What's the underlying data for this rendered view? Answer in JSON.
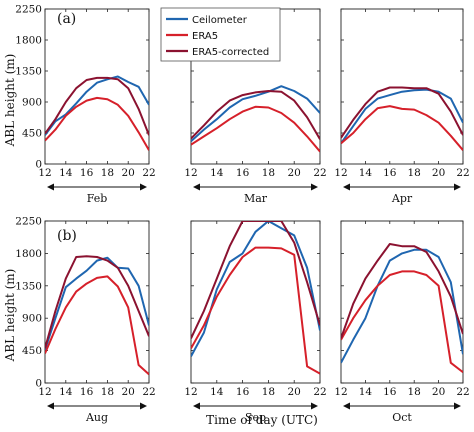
{
  "chart_data": {
    "type": "line",
    "xlabel": "Time of day (UTC)",
    "ylabel": "ABL height (m)",
    "xlim": [
      12,
      22
    ],
    "ylim": [
      0,
      2250
    ],
    "x_ticks": [
      12,
      14,
      16,
      18,
      20,
      22
    ],
    "y_ticks": [
      0,
      450,
      900,
      1350,
      1800,
      2250
    ],
    "grid": false,
    "legend": {
      "location": "top, first row centre",
      "entries": [
        {
          "name": "Ceilometer",
          "color": "#1f66b0"
        },
        {
          "name": "ERA5",
          "color": "#d6202a"
        },
        {
          "name": "ERA5-corrected",
          "color": "#8b1230"
        }
      ]
    },
    "rows": [
      {
        "label": "(a)",
        "panels": [
          {
            "month": "Feb",
            "series": [
              {
                "name": "Ceilometer",
                "x": [
                  12,
                  13,
                  14,
                  15,
                  16,
                  17,
                  18,
                  19,
                  20,
                  21,
                  22
                ],
                "y": [
                  420,
                  620,
                  720,
                  880,
                  1050,
                  1180,
                  1230,
                  1270,
                  1190,
                  1120,
                  860
                ]
              },
              {
                "name": "ERA5",
                "x": [
                  12,
                  13,
                  14,
                  15,
                  16,
                  17,
                  18,
                  19,
                  20,
                  21,
                  22
                ],
                "y": [
                  340,
                  500,
                  700,
                  830,
                  920,
                  960,
                  940,
                  860,
                  700,
                  460,
                  200
                ]
              },
              {
                "name": "ERA5-corrected",
                "x": [
                  12,
                  13,
                  14,
                  15,
                  16,
                  17,
                  18,
                  19,
                  20,
                  21,
                  22
                ],
                "y": [
                  440,
                  650,
                  900,
                  1100,
                  1220,
                  1250,
                  1250,
                  1230,
                  1100,
                  800,
                  420
                ]
              }
            ]
          },
          {
            "month": "Mar",
            "series": [
              {
                "name": "Ceilometer",
                "x": [
                  12,
                  13,
                  14,
                  15,
                  16,
                  17,
                  18,
                  19,
                  20,
                  21,
                  22
                ],
                "y": [
                  330,
                  500,
                  650,
                  820,
                  940,
                  990,
                  1050,
                  1130,
                  1060,
                  950,
                  740
                ]
              },
              {
                "name": "ERA5",
                "x": [
                  12,
                  13,
                  14,
                  15,
                  16,
                  17,
                  18,
                  19,
                  20,
                  21,
                  22
                ],
                "y": [
                  280,
                  400,
                  520,
                  650,
                  760,
                  830,
                  820,
                  740,
                  600,
                  400,
                  180
                ]
              },
              {
                "name": "ERA5-corrected",
                "x": [
                  12,
                  13,
                  14,
                  15,
                  16,
                  17,
                  18,
                  19,
                  20,
                  21,
                  22
                ],
                "y": [
                  370,
                  560,
                  760,
                  920,
                  1000,
                  1040,
                  1060,
                  1050,
                  920,
                  680,
                  360
                ]
              }
            ]
          },
          {
            "month": "Apr",
            "series": [
              {
                "name": "Ceilometer",
                "x": [
                  12,
                  13,
                  14,
                  15,
                  16,
                  17,
                  18,
                  19,
                  20,
                  21,
                  22
                ],
                "y": [
                  300,
                  550,
                  800,
                  950,
                  1000,
                  1050,
                  1070,
                  1080,
                  1050,
                  950,
                  600
                ]
              },
              {
                "name": "ERA5",
                "x": [
                  12,
                  13,
                  14,
                  15,
                  16,
                  17,
                  18,
                  19,
                  20,
                  21,
                  22
                ],
                "y": [
                  300,
                  450,
                  650,
                  810,
                  840,
                  800,
                  790,
                  710,
                  600,
                  410,
                  200
                ]
              },
              {
                "name": "ERA5-corrected",
                "x": [
                  12,
                  13,
                  14,
                  15,
                  16,
                  17,
                  18,
                  19,
                  20,
                  21,
                  22
                ],
                "y": [
                  380,
                  640,
                  870,
                  1050,
                  1110,
                  1110,
                  1100,
                  1100,
                  1020,
                  760,
                  420
                ]
              }
            ]
          }
        ]
      },
      {
        "label": "(b)",
        "panels": [
          {
            "month": "Aug",
            "series": [
              {
                "name": "Ceilometer",
                "x": [
                  12,
                  13,
                  14,
                  15,
                  16,
                  17,
                  18,
                  19,
                  20,
                  21,
                  22
                ],
                "y": [
                  460,
                  900,
                  1330,
                  1450,
                  1560,
                  1700,
                  1740,
                  1600,
                  1590,
                  1350,
                  800
                ]
              },
              {
                "name": "ERA5",
                "x": [
                  12,
                  13,
                  14,
                  15,
                  16,
                  17,
                  18,
                  19,
                  20,
                  21,
                  22
                ],
                "y": [
                  410,
                  750,
                  1050,
                  1270,
                  1380,
                  1460,
                  1480,
                  1340,
                  1050,
                  250,
                  120
                ]
              },
              {
                "name": "ERA5-corrected",
                "x": [
                  12,
                  13,
                  14,
                  15,
                  16,
                  17,
                  18,
                  19,
                  20,
                  21,
                  22
                ],
                "y": [
                  480,
                  1000,
                  1450,
                  1750,
                  1760,
                  1750,
                  1700,
                  1600,
                  1350,
                  1000,
                  650
                ]
              }
            ]
          },
          {
            "month": "Sep",
            "series": [
              {
                "name": "Ceilometer",
                "x": [
                  12,
                  13,
                  14,
                  15,
                  16,
                  17,
                  18,
                  19,
                  20,
                  21,
                  22
                ],
                "y": [
                  370,
                  700,
                  1300,
                  1680,
                  1800,
                  2100,
                  2250,
                  2150,
                  2050,
                  1600,
                  730
                ]
              },
              {
                "name": "ERA5",
                "x": [
                  12,
                  13,
                  14,
                  15,
                  16,
                  17,
                  18,
                  19,
                  20,
                  21,
                  22
                ],
                "y": [
                  480,
                  800,
                  1200,
                  1500,
                  1750,
                  1880,
                  1880,
                  1870,
                  1780,
                  230,
                  130
                ]
              },
              {
                "name": "ERA5-corrected",
                "x": [
                  12,
                  13,
                  14,
                  15,
                  16,
                  17,
                  18,
                  19,
                  20,
                  21,
                  22
                ],
                "y": [
                  620,
                  1000,
                  1450,
                  1900,
                  2250,
                  2250,
                  2250,
                  2250,
                  1950,
                  1400,
                  800
                ]
              }
            ]
          },
          {
            "month": "Oct",
            "series": [
              {
                "name": "Ceilometer",
                "x": [
                  12,
                  13,
                  14,
                  15,
                  16,
                  17,
                  18,
                  19,
                  20,
                  21,
                  22
                ],
                "y": [
                  280,
                  600,
                  900,
                  1350,
                  1700,
                  1800,
                  1850,
                  1850,
                  1750,
                  1400,
                  400
                ]
              },
              {
                "name": "ERA5",
                "x": [
                  12,
                  13,
                  14,
                  15,
                  16,
                  17,
                  18,
                  19,
                  20,
                  21,
                  22
                ],
                "y": [
                  600,
                  900,
                  1150,
                  1350,
                  1500,
                  1550,
                  1550,
                  1500,
                  1350,
                  280,
                  150
                ]
              },
              {
                "name": "ERA5-corrected",
                "x": [
                  12,
                  13,
                  14,
                  15,
                  16,
                  17,
                  18,
                  19,
                  20,
                  21,
                  22
                ],
                "y": [
                  620,
                  1100,
                  1450,
                  1700,
                  1930,
                  1900,
                  1900,
                  1820,
                  1550,
                  1200,
                  680
                ]
              }
            ]
          }
        ]
      }
    ]
  }
}
